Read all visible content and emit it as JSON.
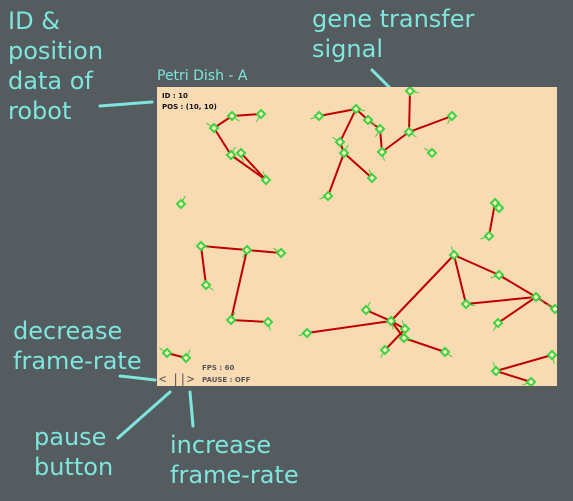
{
  "dish": {
    "title": "Petri Dish - A"
  },
  "robot": {
    "id_text": "ID : 10",
    "pos_text": "POS : (10, 10)"
  },
  "status": {
    "fps_text": "FPS : 60",
    "pause_text": "PAUSE : OFF"
  },
  "controls": {
    "decrease_label": "<",
    "pause_label": "||",
    "increase_label": ">"
  },
  "annotations": {
    "robot_info": "ID &\nposition\ndata of\nrobot",
    "gene_transfer": "gene transfer\nsignal",
    "decrease": "decrease\nframe-rate",
    "pause": "pause\nbutton",
    "increase": "increase\nframe-rate"
  },
  "colors": {
    "background": "#555c60",
    "annotation": "#7fe6de",
    "dish": "#f8dab3",
    "link": "#c00000",
    "robot": "#3fd23f",
    "robot_outline": "#2a7a2a"
  },
  "icons": {
    "robot": "green-diamond-robot-icon",
    "link": "red-gene-link-line"
  }
}
